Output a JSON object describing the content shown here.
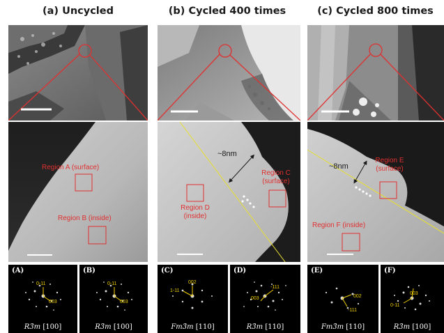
{
  "columns": [
    {
      "title": "(a) Uncycled",
      "regions": [
        "Region A (surface)",
        "Region B (inside)"
      ],
      "fft": [
        {
          "tag": "(A)",
          "space_group": "R3̄m",
          "zone": "[100]",
          "spots": [
            "0-11",
            "003"
          ]
        },
        {
          "tag": "(B)",
          "space_group": "R3̄m",
          "zone": "[100]",
          "spots": [
            "0-11",
            "003"
          ]
        }
      ]
    },
    {
      "title": "(b) Cycled 400 times",
      "thickness": "~8nm",
      "regions": [
        "Region C (surface)",
        "Region D (inside)"
      ],
      "fft": [
        {
          "tag": "(C)",
          "space_group": "Fm3̄m",
          "zone": "[110]",
          "spots": [
            "002",
            "1-11"
          ]
        },
        {
          "tag": "(D)",
          "space_group": "R3̄m",
          "zone": "[110]",
          "spots": [
            "-111",
            "003"
          ]
        }
      ]
    },
    {
      "title": "(c) Cycled 800 times",
      "thickness": "~8nm",
      "regions": [
        "Region E (surface)",
        "Region F (inside)"
      ],
      "fft": [
        {
          "tag": "(E)",
          "space_group": "Fm3̄m",
          "zone": "[110]",
          "spots": [
            "002",
            "-111"
          ]
        },
        {
          "tag": "(F)",
          "space_group": "R3̄m",
          "zone": "[100]",
          "spots": [
            "003",
            "0-11"
          ]
        }
      ]
    }
  ],
  "colors": {
    "region_box": "#e03030",
    "zoom_line": "#e03030",
    "interface_line": "#e8e030",
    "fft_label": "#f2d200"
  }
}
